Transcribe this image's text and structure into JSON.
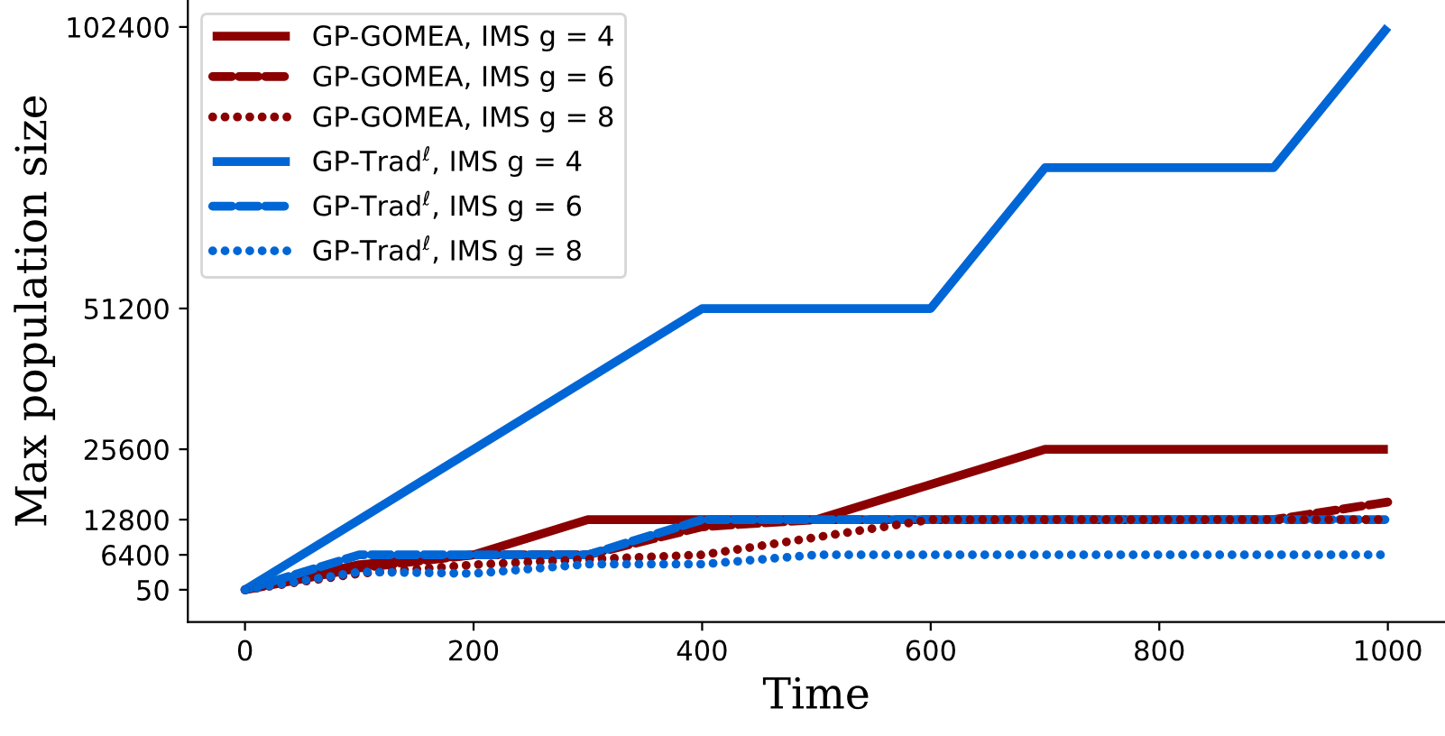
{
  "chart_data": {
    "type": "line",
    "xlabel": "Time",
    "ylabel": "Max population size",
    "x": [
      0,
      100,
      200,
      300,
      400,
      500,
      600,
      700,
      800,
      900,
      1000
    ],
    "series": [
      {
        "name": "GP-GOMEA, IMS g = 4",
        "color": "#8b0000",
        "line_style": "solid",
        "values": [
          50,
          4600,
          6400,
          12800,
          12800,
          12800,
          19200,
          25600,
          25600,
          25600,
          25600
        ]
      },
      {
        "name": "GP-GOMEA, IMS g = 6",
        "color": "#8b0000",
        "line_style": "dashed",
        "values": [
          50,
          4000,
          6400,
          6400,
          11500,
          12800,
          12800,
          12800,
          12800,
          12800,
          16000
        ]
      },
      {
        "name": "GP-GOMEA, IMS g = 8",
        "color": "#8b0000",
        "line_style": "dotted",
        "values": [
          50,
          3000,
          4600,
          5600,
          6400,
          9600,
          12800,
          12800,
          12800,
          12800,
          12800
        ]
      },
      {
        "name": "GP-Trad$^{ℓ}$, IMS g = 4",
        "color": "#0066d6",
        "line_style": "solid",
        "values": [
          50,
          12800,
          25600,
          38400,
          51200,
          51200,
          51200,
          76800,
          76800,
          76800,
          102400
        ]
      },
      {
        "name": "GP-Trad$^{ℓ}$, IMS g = 6",
        "color": "#0066d6",
        "line_style": "dashed",
        "values": [
          50,
          6400,
          6400,
          6400,
          12800,
          12800,
          12800,
          12800,
          12800,
          12800,
          12800
        ]
      },
      {
        "name": "GP-Trad$^{ℓ}$, IMS g = 8",
        "color": "#0066d6",
        "line_style": "dotted",
        "values": [
          50,
          3300,
          3000,
          4700,
          4700,
          6400,
          6400,
          6400,
          6400,
          6400,
          6400
        ]
      }
    ],
    "xlim": [
      -50,
      1050
    ],
    "ylim": [
      -5800,
      107300
    ],
    "xticks": [
      0,
      200,
      400,
      600,
      800,
      1000
    ],
    "yticks": [
      50,
      6400,
      12800,
      25600,
      51200,
      102400
    ],
    "grid": false,
    "legend": "top left",
    "marker": "none"
  }
}
